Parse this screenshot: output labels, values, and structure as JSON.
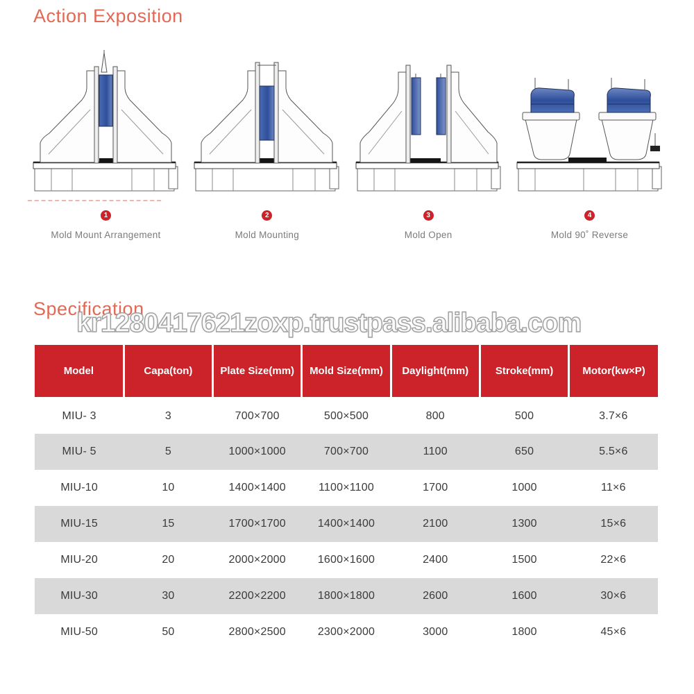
{
  "page": {
    "title": "Action Exposition",
    "spec_title": "Specification",
    "watermark": "kr1280417621zoxp.trustpass.alibaba.com"
  },
  "action_steps": [
    {
      "number": "1",
      "label": "Mold Mount  Arrangement"
    },
    {
      "number": "2",
      "label": "Mold Mounting"
    },
    {
      "number": "3",
      "label": "Mold Open"
    },
    {
      "number": "4",
      "label": "Mold 90˚  Reverse"
    }
  ],
  "colors": {
    "accent_title": "#e06a55",
    "table_header_bg": "#cc2229",
    "table_header_text": "#ffffff",
    "row_alt_bg": "#d9d9d9",
    "step_badge_bg": "#cc2229",
    "mold_blue": "#3a5ca8",
    "caption_text": "#7b7b7b"
  },
  "chart_data": {
    "type": "table",
    "columns": [
      "Model",
      "Capa(ton)",
      "Plate Size(mm)",
      "Mold Size(mm)",
      "Daylight(mm)",
      "Stroke(mm)",
      "Motor(kw×P)"
    ],
    "rows": [
      [
        "MIU- 3",
        "3",
        "700×700",
        "500×500",
        "800",
        "500",
        "3.7×6"
      ],
      [
        "MIU- 5",
        "5",
        "1000×1000",
        "700×700",
        "1100",
        "650",
        "5.5×6"
      ],
      [
        "MIU-10",
        "10",
        "1400×1400",
        "1100×1100",
        "1700",
        "1000",
        "11×6"
      ],
      [
        "MIU-15",
        "15",
        "1700×1700",
        "1400×1400",
        "2100",
        "1300",
        "15×6"
      ],
      [
        "MIU-20",
        "20",
        "2000×2000",
        "1600×1600",
        "2400",
        "1500",
        "22×6"
      ],
      [
        "MIU-30",
        "30",
        "2200×2200",
        "1800×1800",
        "2600",
        "1600",
        "30×6"
      ],
      [
        "MIU-50",
        "50",
        "2800×2500",
        "2300×2000",
        "3000",
        "1800",
        "45×6"
      ]
    ]
  }
}
